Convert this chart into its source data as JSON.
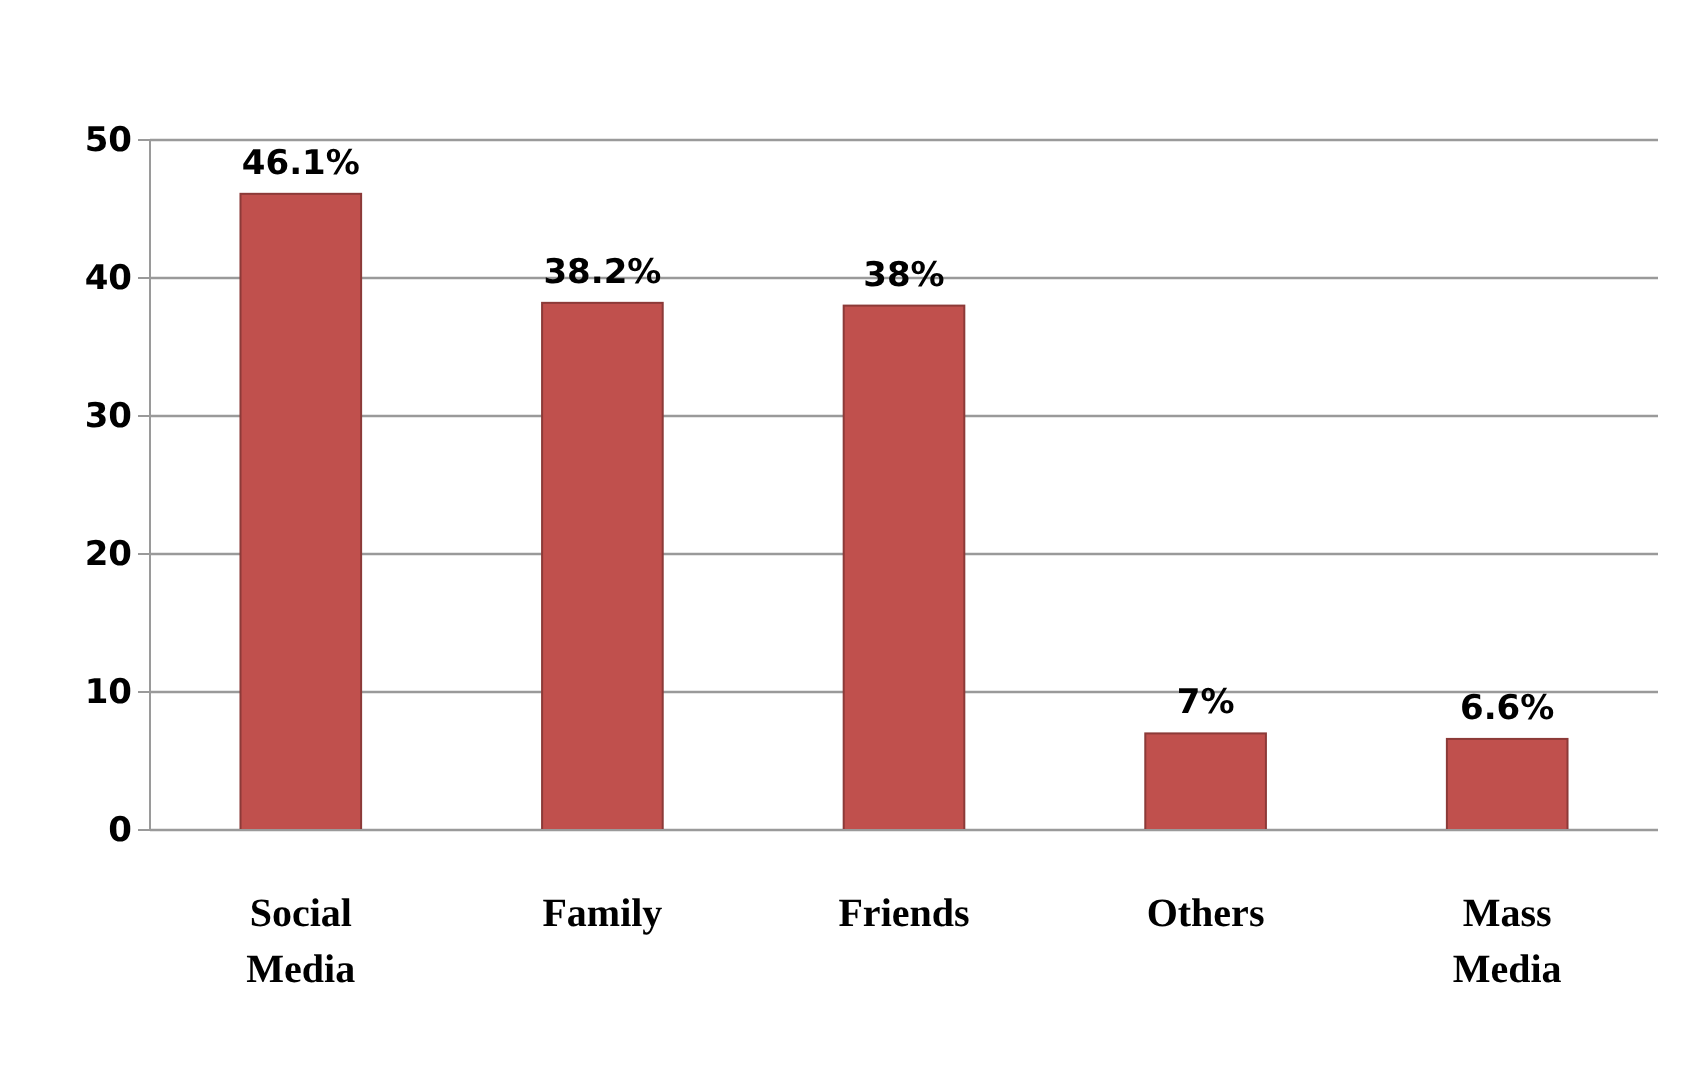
{
  "chart_data": {
    "type": "bar",
    "categories": [
      "Social Media",
      "Family",
      "Friends",
      "Others",
      "Mass Media"
    ],
    "values": [
      46.1,
      38.2,
      38,
      7,
      6.6
    ],
    "value_labels": [
      "46.1%",
      "38.2%",
      "38%",
      "7%",
      "6.6%"
    ],
    "color": "#c0504d",
    "ylim": [
      0,
      50
    ],
    "yticks": [
      0,
      10,
      20,
      30,
      40,
      50
    ],
    "grid": "y"
  }
}
